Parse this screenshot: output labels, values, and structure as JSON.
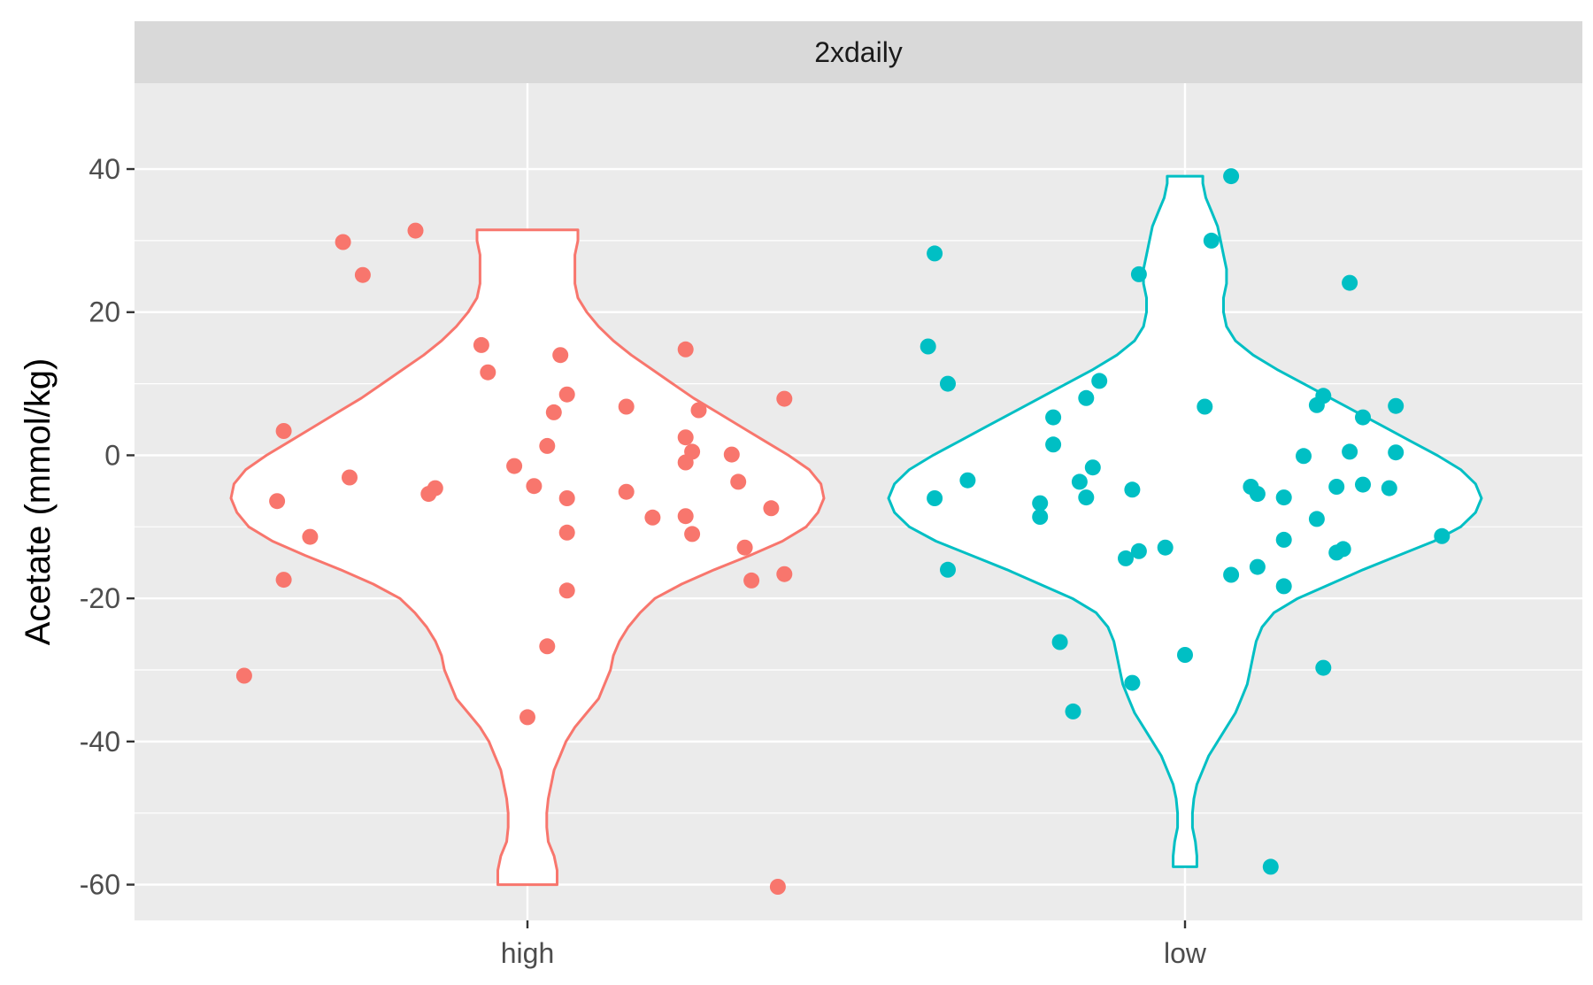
{
  "chart_data": {
    "type": "violin",
    "facet_label": "2xdaily",
    "ylabel": "Acetate (mmol/kg)",
    "xlabel": "",
    "ylim": [
      -65,
      52
    ],
    "y_ticks": [
      -60,
      -40,
      -20,
      0,
      20,
      40
    ],
    "y_tick_labels": [
      "-60",
      "-40",
      "-20",
      "0",
      "20",
      "40"
    ],
    "categories": [
      "high",
      "low"
    ],
    "colors": {
      "high": "#F8766D",
      "low": "#00BFC4"
    },
    "grid": true,
    "legend": "none",
    "violins": [
      {
        "category": "high",
        "profile": [
          [
            -60,
            0.1
          ],
          [
            -58,
            0.1
          ],
          [
            -56,
            0.09
          ],
          [
            -54,
            0.07
          ],
          [
            -52,
            0.065
          ],
          [
            -50,
            0.065
          ],
          [
            -48,
            0.07
          ],
          [
            -46,
            0.08
          ],
          [
            -44,
            0.09
          ],
          [
            -42,
            0.11
          ],
          [
            -40,
            0.13
          ],
          [
            -38,
            0.16
          ],
          [
            -36,
            0.2
          ],
          [
            -34,
            0.24
          ],
          [
            -32,
            0.26
          ],
          [
            -30,
            0.28
          ],
          [
            -28,
            0.29
          ],
          [
            -26,
            0.31
          ],
          [
            -24,
            0.34
          ],
          [
            -22,
            0.38
          ],
          [
            -20,
            0.43
          ],
          [
            -18,
            0.52
          ],
          [
            -16,
            0.63
          ],
          [
            -14,
            0.75
          ],
          [
            -12,
            0.86
          ],
          [
            -10,
            0.94
          ],
          [
            -8,
            0.98
          ],
          [
            -6,
            1.0
          ],
          [
            -4,
            0.99
          ],
          [
            -2,
            0.95
          ],
          [
            0,
            0.88
          ],
          [
            2,
            0.8
          ],
          [
            4,
            0.72
          ],
          [
            6,
            0.64
          ],
          [
            8,
            0.56
          ],
          [
            10,
            0.49
          ],
          [
            12,
            0.42
          ],
          [
            14,
            0.35
          ],
          [
            16,
            0.29
          ],
          [
            18,
            0.24
          ],
          [
            20,
            0.2
          ],
          [
            22,
            0.17
          ],
          [
            24,
            0.16
          ],
          [
            26,
            0.16
          ],
          [
            28,
            0.16
          ],
          [
            30,
            0.17
          ],
          [
            31.5,
            0.17
          ]
        ],
        "points": [
          [
            -30.8,
            -0.43
          ],
          [
            -6.4,
            -0.38
          ],
          [
            -17.4,
            -0.37
          ],
          [
            3.4,
            -0.37
          ],
          [
            -11.4,
            -0.33
          ],
          [
            29.8,
            -0.28
          ],
          [
            -3.1,
            -0.27
          ],
          [
            25.2,
            -0.25
          ],
          [
            31.4,
            -0.17
          ],
          [
            -5.4,
            -0.15
          ],
          [
            -4.6,
            -0.14
          ],
          [
            15.4,
            -0.07
          ],
          [
            11.6,
            -0.06
          ],
          [
            -36.6,
            0.0
          ],
          [
            -1.5,
            -0.02
          ],
          [
            -4.3,
            0.01
          ],
          [
            -26.7,
            0.03
          ],
          [
            1.3,
            0.03
          ],
          [
            6.0,
            0.04
          ],
          [
            14.0,
            0.05
          ],
          [
            8.5,
            0.06
          ],
          [
            -6.0,
            0.06
          ],
          [
            -10.8,
            0.06
          ],
          [
            -18.9,
            0.06
          ],
          [
            6.8,
            0.15
          ],
          [
            -5.1,
            0.15
          ],
          [
            -8.7,
            0.19
          ],
          [
            -8.5,
            0.24
          ],
          [
            -1.0,
            0.24
          ],
          [
            2.5,
            0.24
          ],
          [
            0.5,
            0.25
          ],
          [
            14.8,
            0.24
          ],
          [
            -11.0,
            0.25
          ],
          [
            6.3,
            0.26
          ],
          [
            0.1,
            0.31
          ],
          [
            -3.7,
            0.32
          ],
          [
            -12.9,
            0.33
          ],
          [
            -17.5,
            0.34
          ],
          [
            -7.4,
            0.37
          ],
          [
            -60.3,
            0.38
          ],
          [
            -16.6,
            0.39
          ],
          [
            7.9,
            0.39
          ]
        ]
      },
      {
        "category": "low",
        "profile": [
          [
            -57.5,
            0.04
          ],
          [
            -56,
            0.04
          ],
          [
            -54,
            0.035
          ],
          [
            -52,
            0.025
          ],
          [
            -50,
            0.025
          ],
          [
            -48,
            0.03
          ],
          [
            -46,
            0.04
          ],
          [
            -44,
            0.06
          ],
          [
            -42,
            0.08
          ],
          [
            -40,
            0.11
          ],
          [
            -38,
            0.14
          ],
          [
            -36,
            0.17
          ],
          [
            -34,
            0.19
          ],
          [
            -32,
            0.21
          ],
          [
            -30,
            0.22
          ],
          [
            -28,
            0.23
          ],
          [
            -26,
            0.24
          ],
          [
            -24,
            0.26
          ],
          [
            -22,
            0.3
          ],
          [
            -20,
            0.38
          ],
          [
            -18,
            0.49
          ],
          [
            -16,
            0.6
          ],
          [
            -14,
            0.72
          ],
          [
            -12,
            0.84
          ],
          [
            -10,
            0.93
          ],
          [
            -8,
            0.98
          ],
          [
            -6,
            1.0
          ],
          [
            -4,
            0.98
          ],
          [
            -2,
            0.93
          ],
          [
            0,
            0.85
          ],
          [
            2,
            0.76
          ],
          [
            4,
            0.67
          ],
          [
            6,
            0.58
          ],
          [
            8,
            0.49
          ],
          [
            10,
            0.4
          ],
          [
            12,
            0.31
          ],
          [
            14,
            0.23
          ],
          [
            16,
            0.17
          ],
          [
            18,
            0.14
          ],
          [
            20,
            0.13
          ],
          [
            22,
            0.13
          ],
          [
            24,
            0.14
          ],
          [
            26,
            0.14
          ],
          [
            28,
            0.13
          ],
          [
            30,
            0.12
          ],
          [
            32,
            0.11
          ],
          [
            34,
            0.09
          ],
          [
            36,
            0.07
          ],
          [
            38,
            0.06
          ],
          [
            39,
            0.06
          ]
        ],
        "points": [
          [
            28.2,
            -0.38
          ],
          [
            15.2,
            -0.39
          ],
          [
            -6.0,
            -0.38
          ],
          [
            10.0,
            -0.36
          ],
          [
            -16.0,
            -0.36
          ],
          [
            -3.5,
            -0.33
          ],
          [
            -6.7,
            -0.22
          ],
          [
            -8.6,
            -0.22
          ],
          [
            5.3,
            -0.2
          ],
          [
            1.5,
            -0.2
          ],
          [
            -26.1,
            -0.19
          ],
          [
            -35.8,
            -0.17
          ],
          [
            -3.7,
            -0.16
          ],
          [
            8.0,
            -0.15
          ],
          [
            -5.9,
            -0.15
          ],
          [
            -1.7,
            -0.14
          ],
          [
            10.4,
            -0.13
          ],
          [
            -14.4,
            -0.09
          ],
          [
            -4.8,
            -0.08
          ],
          [
            -31.8,
            -0.08
          ],
          [
            -13.4,
            -0.07
          ],
          [
            25.3,
            -0.07
          ],
          [
            -12.9,
            -0.03
          ],
          [
            -27.9,
            0.0
          ],
          [
            6.8,
            0.03
          ],
          [
            30.0,
            0.04
          ],
          [
            39.0,
            0.07
          ],
          [
            -16.7,
            0.07
          ],
          [
            -4.4,
            0.1
          ],
          [
            -5.4,
            0.11
          ],
          [
            -15.6,
            0.11
          ],
          [
            -57.5,
            0.13
          ],
          [
            -5.9,
            0.15
          ],
          [
            -18.3,
            0.15
          ],
          [
            -11.8,
            0.15
          ],
          [
            -0.1,
            0.18
          ],
          [
            -8.9,
            0.2
          ],
          [
            7.0,
            0.2
          ],
          [
            -29.7,
            0.21
          ],
          [
            8.3,
            0.21
          ],
          [
            -13.6,
            0.23
          ],
          [
            -4.4,
            0.23
          ],
          [
            -13.1,
            0.24
          ],
          [
            24.1,
            0.25
          ],
          [
            0.5,
            0.25
          ],
          [
            5.3,
            0.27
          ],
          [
            -4.1,
            0.27
          ],
          [
            -4.6,
            0.31
          ],
          [
            6.9,
            0.32
          ],
          [
            0.4,
            0.32
          ],
          [
            -11.3,
            0.39
          ]
        ]
      }
    ]
  }
}
